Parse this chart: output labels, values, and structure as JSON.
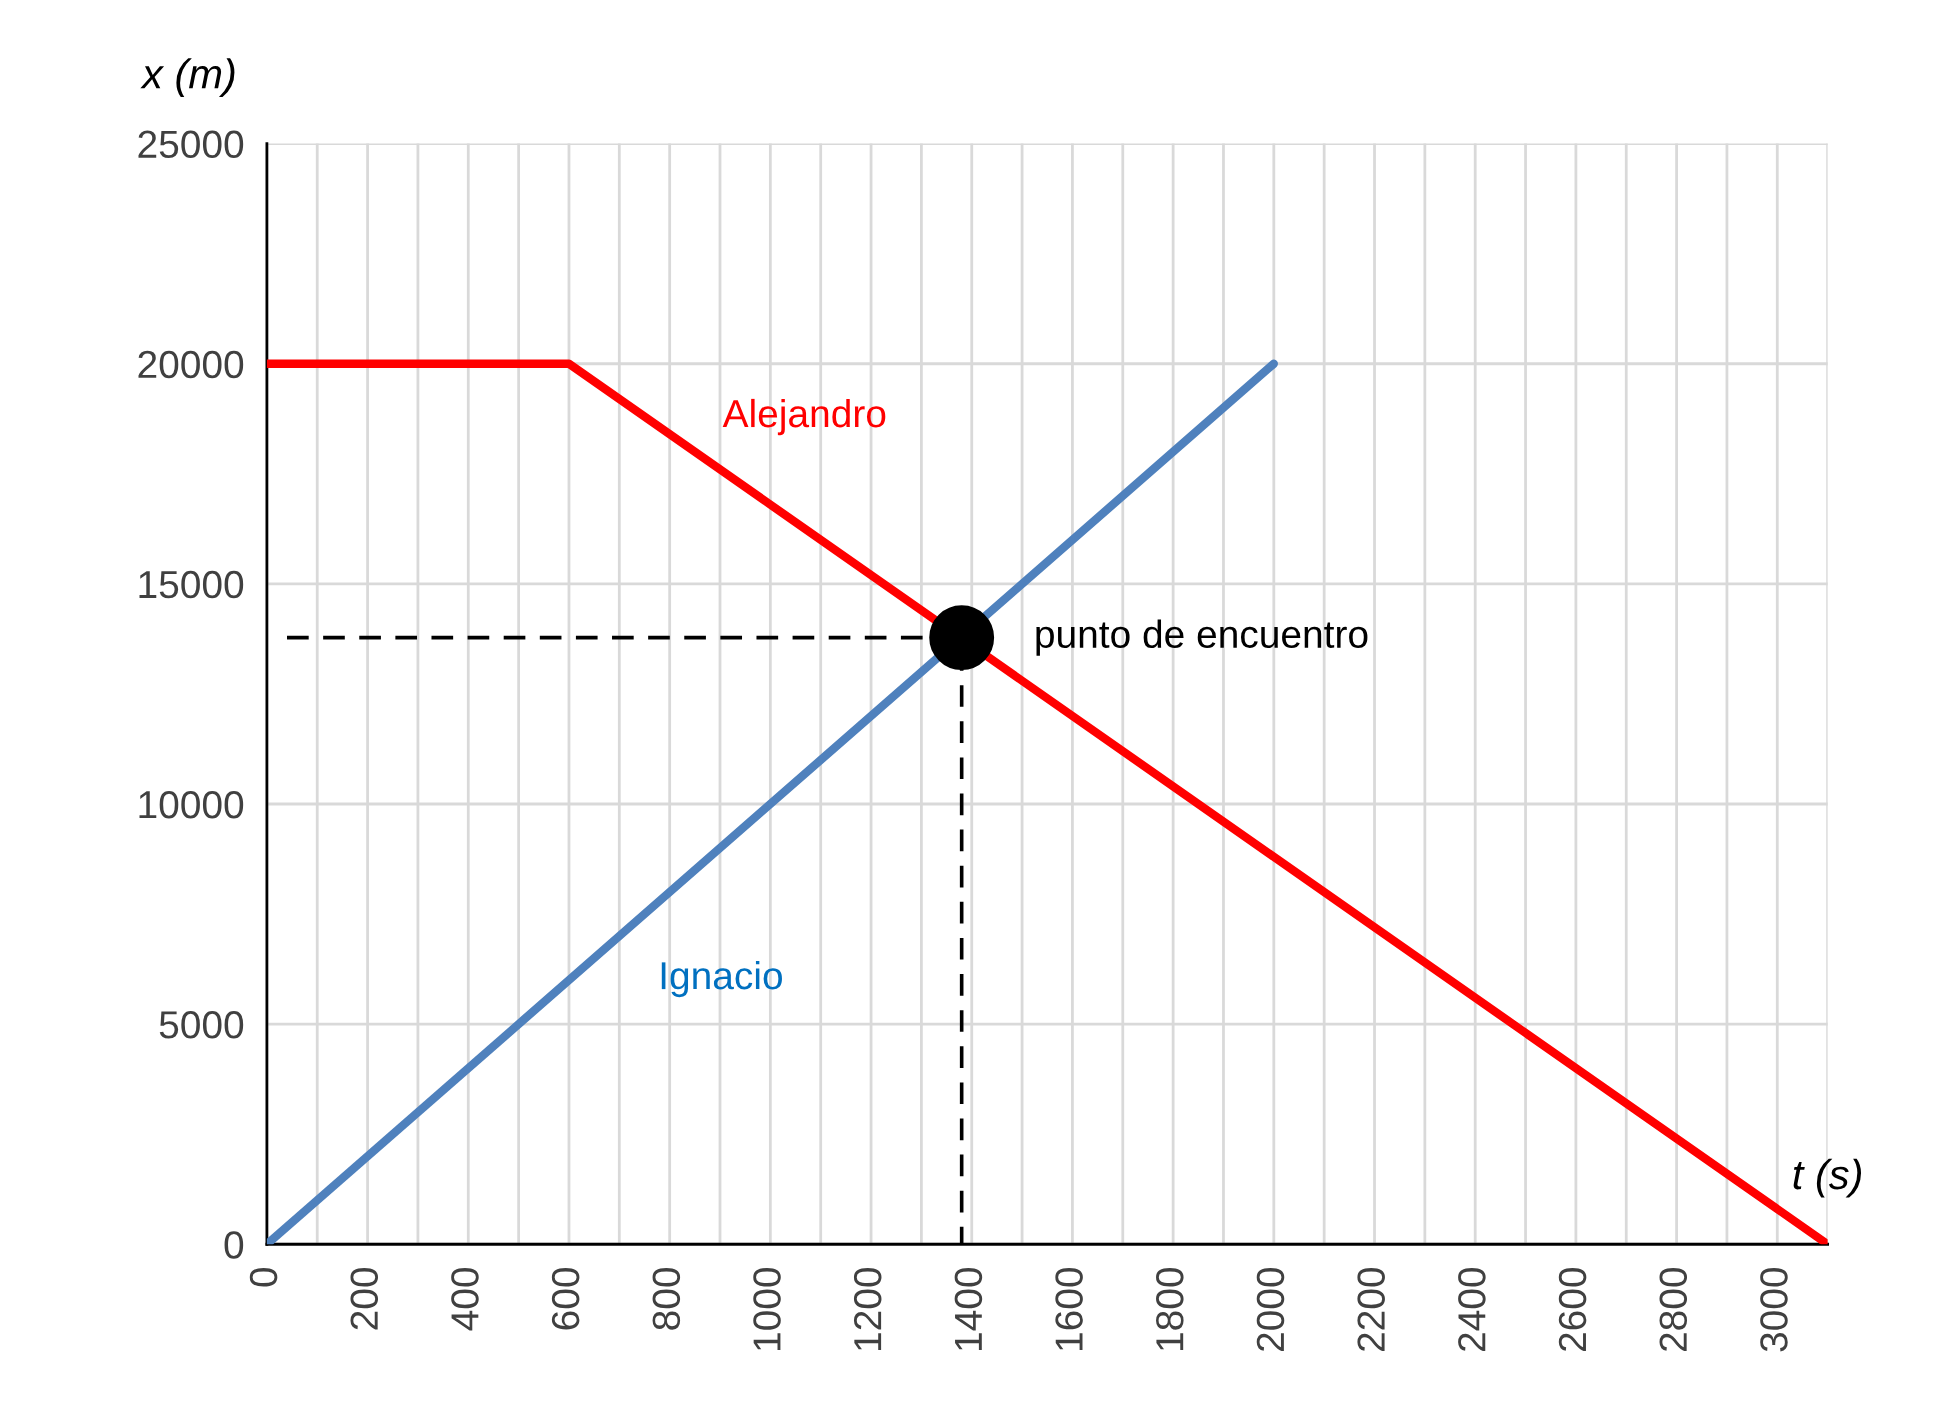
{
  "chart_data": {
    "type": "line",
    "xlabel": "t (s)",
    "ylabel": "x (m)",
    "xlim": [
      0,
      3100
    ],
    "ylim": [
      0,
      25000
    ],
    "xticks": [
      0,
      {
        "value": 100,
        "label": null
      },
      200,
      {
        "value": 300,
        "label": null
      },
      400,
      {
        "value": 500,
        "label": null
      },
      600,
      {
        "value": 700,
        "label": null
      },
      800,
      {
        "value": 900,
        "label": null
      },
      1000,
      {
        "value": 1100,
        "label": null
      },
      1200,
      {
        "value": 1300,
        "label": null
      },
      1400,
      {
        "value": 1500,
        "label": null
      },
      1600,
      {
        "value": 1700,
        "label": null
      },
      1800,
      {
        "value": 1900,
        "label": null
      },
      2000,
      {
        "value": 2100,
        "label": null
      },
      2200,
      {
        "value": 2300,
        "label": null
      },
      2400,
      {
        "value": 2500,
        "label": null
      },
      2600,
      {
        "value": 2700,
        "label": null
      },
      2800,
      {
        "value": 2900,
        "label": null
      },
      3000,
      {
        "value": 3100,
        "label": null
      }
    ],
    "yticks": [
      0,
      5000,
      10000,
      15000,
      20000,
      25000
    ],
    "grid": true,
    "series": [
      {
        "name": "Alejandro",
        "color": "#ff0000",
        "x": [
          0,
          600,
          3100
        ],
        "values": [
          20000,
          20000,
          0
        ]
      },
      {
        "name": "Ignacio",
        "color": "#4f81bd",
        "x": [
          0,
          2000
        ],
        "values": [
          0,
          20000
        ]
      },
      {
        "color": "#000000",
        "line_style": "dashed",
        "x": [
          40,
          1380,
          1380
        ],
        "values": [
          13780,
          13780,
          0
        ]
      },
      {
        "type": "scatter",
        "color": "#000000",
        "marker": "circle",
        "x": [
          1380
        ],
        "values": [
          13780
        ]
      }
    ],
    "annotations": [
      {
        "text": "punto de encuentro",
        "x": 1380,
        "y": 13780
      }
    ]
  }
}
